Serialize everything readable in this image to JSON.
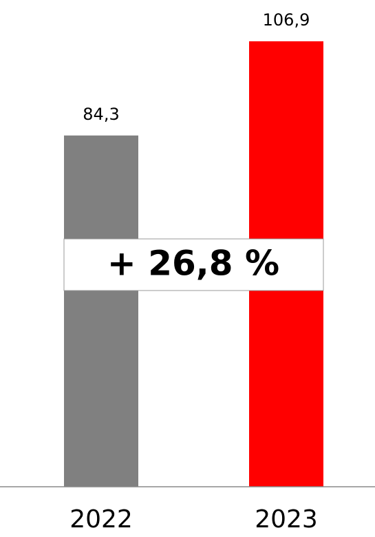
{
  "chart_data": {
    "type": "bar",
    "categories": [
      "2022",
      "2023"
    ],
    "values": [
      84.3,
      106.9
    ],
    "value_labels": [
      "84,3",
      "106,9"
    ],
    "colors": [
      "#808080",
      "#ff0000"
    ],
    "annotation": "+ 26,8 %"
  }
}
